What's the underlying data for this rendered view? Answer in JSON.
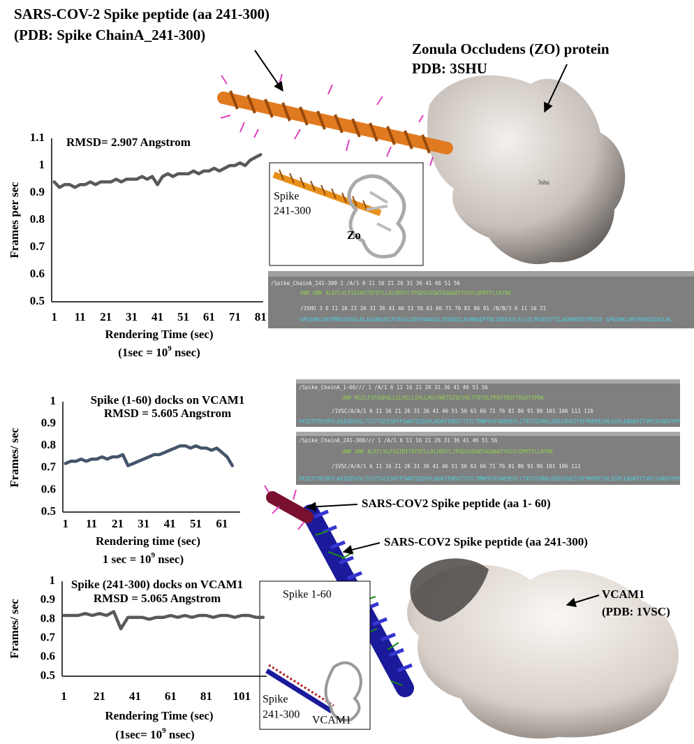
{
  "figure": {
    "heading": [
      "SARS-COV-2 Spike peptide (aa 241-300)",
      "(PDB: Spike ChainA_241-300)"
    ],
    "zo_label": [
      "Zonula Occludens (ZO) protein",
      "PDB: 3SHU"
    ],
    "zo_inset": {
      "spike": [
        "Spike",
        "241-300"
      ],
      "target": "Zo"
    },
    "zo_model_label": "3shu",
    "peptide_1_60": "SARS-COV2 Spike peptide (aa 1- 60)",
    "peptide_241_300": "SARS-COV2 Spike peptide (aa 241-300)",
    "vcam_label": [
      "VCAM1",
      "(PDB: 1VSC)"
    ],
    "vcam_inset": {
      "spike_a": "Spike 1-60",
      "spike_b": [
        "Spike",
        "241-300"
      ],
      "target": "VCAM1"
    },
    "sequence_panels": [
      {
        "rows": [
          {
            "numbering": "/Spike_ChainA_241-300  1      /A/1    6    11   16   21   26   31   36   41   46   51   56",
            "sequence": "UNK  UNK     ALEFLVLPIGINITRFQTLLALHRSYLTPGDSSSGWTAGAAAYYVGYLQPRTFLLKYNE"
          },
          {
            "numbering": "/3SHU  3  6    11   16   21   26   31   36   41   46   51   56   61   66   71   76   81   86   91     /B/B/3  6    11   16   21",
            "sequence": "GPGSHKLVKVFRKGDSVGLRLAGGNDVGIFVAGVLEDSPAAKEGLEEGDQILRVNNVDFTNIIREEAVLFLLDLPKGEEVTILAQKKKDVYRRIVE     GPGSHKLVKVFRKGDSVGLRL"
          }
        ]
      },
      {
        "rows": [
          {
            "numbering": "/Spike_ChainA_1-60///  1    /A/1    6    11   16   21   26   31   36   41   46   51   56",
            "sequence": "UNK    MGILFSFGHPALLSLVSLLSVLLHGCVWETGTQCVHLTTRTQLPPAYTNSFTRGVYYPDK"
          },
          {
            "numbering": "/1VSC/A/A/1    6    11   16   21   26   31   36   41   46   51   56   61   66   71   76   81   86   91   96   101  106  111  116",
            "sequence": "FKIETTPESRYLAQIGDSVSLTCSTTGCESPFFSWRTQIDSPLNGKVTNEGTTSTLTMNPVSFGNEHSYLCTATCESRKLEKGIQVEIYSFPKDPEIHLSGPLEAGKPITVKCSVADVYPF"
          }
        ]
      },
      {
        "rows": [
          {
            "numbering": "/Spike_ChainA_241-300///  1    /A/1    6    11   16   21   26   31   36   41   46   51   56",
            "sequence": "UNK UNK   ALEFLVLPIGINITRFQTLLALHRSYLTPGDSSSGWTAGAAAYYVGYLQPRTFLLKYNE"
          },
          {
            "numbering": "/1VSC/A/A/1    6    11   16   21   26   31   36   41   46   51   56   61   66   71   76   81   86   91   96   101  106  111",
            "sequence": "FKIETTPESRYLAQIGDSVSLTCSTTGCESPFFSWRTQIDSPLNGKVTNEGTTSTLTMNPVSFGNEHSYLCTATCESRKLEKGIQVEIYSFPKDPEIHLSGPLEAGKPITVKCSVADVYPF"
          }
        ]
      }
    ]
  },
  "chart_data": [
    {
      "type": "line",
      "title": "RMSD= 2.907 Angstrom",
      "x_label": "Rendering Time (sec)",
      "y_label": "Frames per sec",
      "x_note": {
        "prefix": "(1sec = 10",
        "exponent": "9",
        "suffix": " nsec)"
      },
      "x": [
        1,
        3,
        5,
        7,
        9,
        11,
        13,
        15,
        17,
        19,
        21,
        23,
        25,
        27,
        29,
        31,
        33,
        35,
        37,
        39,
        41,
        43,
        45,
        47,
        49,
        51,
        53,
        55,
        57,
        59,
        61,
        63,
        65,
        67,
        69,
        71,
        73,
        75,
        77,
        79,
        81
      ],
      "values": [
        0.94,
        0.92,
        0.93,
        0.93,
        0.92,
        0.93,
        0.93,
        0.94,
        0.93,
        0.94,
        0.94,
        0.94,
        0.95,
        0.94,
        0.95,
        0.95,
        0.95,
        0.96,
        0.95,
        0.96,
        0.93,
        0.96,
        0.97,
        0.96,
        0.97,
        0.97,
        0.97,
        0.98,
        0.97,
        0.98,
        0.98,
        0.99,
        0.98,
        0.99,
        1.0,
        1.0,
        1.01,
        1.0,
        1.02,
        1.03,
        1.04
      ],
      "color": "#595959",
      "xlim": [
        0,
        82
      ],
      "xticks": [
        1,
        11,
        21,
        31,
        41,
        51,
        61,
        71,
        81
      ],
      "ylim": [
        0.5,
        1.1
      ],
      "yticks": [
        0.5,
        0.6,
        0.7,
        0.8,
        0.9,
        1,
        1.1
      ],
      "grid": false
    },
    {
      "type": "line",
      "title": "Spike (1-60) docks on VCAM1",
      "subtitle": "RMSD = 5.605 Angstrom",
      "x_label": "Rendering time (sec)",
      "y_label": "Frames/ sec",
      "x_note": {
        "prefix": "1 sec = 10",
        "exponent": "9",
        "suffix": "  nsec)"
      },
      "x": [
        1,
        3,
        5,
        7,
        9,
        11,
        13,
        15,
        17,
        19,
        21,
        23,
        25,
        27,
        29,
        31,
        33,
        35,
        37,
        39,
        41,
        43,
        45,
        47,
        49,
        51,
        53,
        55,
        57,
        59,
        61,
        63,
        65
      ],
      "values": [
        0.72,
        0.73,
        0.73,
        0.74,
        0.73,
        0.74,
        0.74,
        0.75,
        0.74,
        0.75,
        0.75,
        0.76,
        0.71,
        0.72,
        0.73,
        0.74,
        0.75,
        0.76,
        0.76,
        0.77,
        0.78,
        0.79,
        0.8,
        0.8,
        0.79,
        0.8,
        0.79,
        0.79,
        0.78,
        0.79,
        0.77,
        0.75,
        0.71
      ],
      "color": "#44546a",
      "xlim": [
        0,
        68
      ],
      "xticks": [
        1,
        11,
        21,
        31,
        41,
        51,
        61
      ],
      "ylim": [
        0.5,
        1
      ],
      "yticks": [
        0.5,
        0.6,
        0.7,
        0.8,
        0.9,
        1
      ],
      "grid": false
    },
    {
      "type": "line",
      "title": "Spike (241-300) docks on VCAM1",
      "subtitle": "RMSD = 5.065 Angstrom",
      "x_label": "Rendering Time (sec)",
      "y_label": "Frames/ sec",
      "x_note": {
        "prefix": "(1sec= 10",
        "exponent": "9",
        "suffix": " nsec)"
      },
      "x": [
        1,
        5,
        9,
        13,
        17,
        21,
        25,
        29,
        33,
        37,
        41,
        45,
        49,
        53,
        57,
        61,
        65,
        69,
        73,
        77,
        81,
        85,
        89,
        93,
        97,
        101,
        105,
        109,
        113
      ],
      "values": [
        0.82,
        0.82,
        0.82,
        0.83,
        0.82,
        0.83,
        0.82,
        0.84,
        0.75,
        0.81,
        0.81,
        0.81,
        0.8,
        0.81,
        0.81,
        0.82,
        0.81,
        0.82,
        0.81,
        0.82,
        0.82,
        0.81,
        0.82,
        0.82,
        0.81,
        0.82,
        0.82,
        0.81,
        0.81
      ],
      "color": "#595959",
      "xlim": [
        0,
        115
      ],
      "xticks": [
        1,
        21,
        41,
        61,
        81,
        101
      ],
      "ylim": [
        0.5,
        1
      ],
      "yticks": [
        0.5,
        0.6,
        0.7,
        0.8,
        0.9,
        1
      ],
      "grid": false
    }
  ]
}
